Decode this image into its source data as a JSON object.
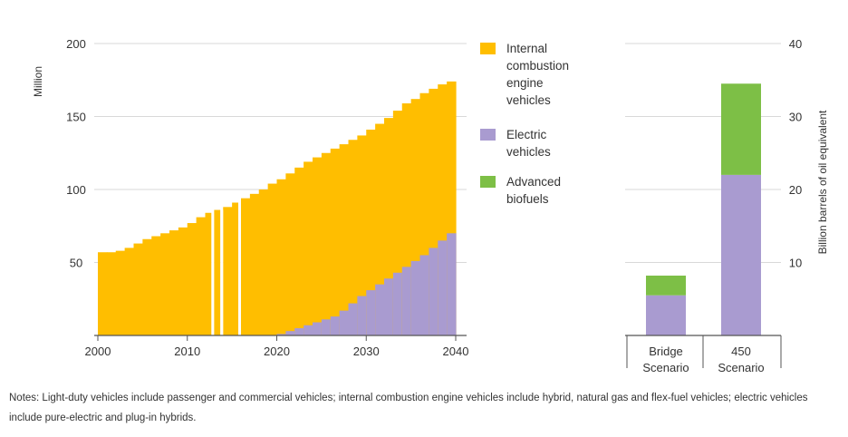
{
  "chart_data": [
    {
      "type": "area",
      "ylabel": "Million",
      "xlim": [
        2000,
        2040
      ],
      "ylim": [
        0,
        200
      ],
      "x_ticks": [
        "2000",
        "2010",
        "2020",
        "2030",
        "2040"
      ],
      "y_ticks": [
        "50",
        "100",
        "150",
        "200"
      ],
      "stacked": true,
      "grid": "horizontal",
      "x": [
        2000,
        2001,
        2002,
        2003,
        2004,
        2005,
        2006,
        2007,
        2008,
        2009,
        2010,
        2011,
        2012,
        2013,
        2014,
        2015,
        2016,
        2017,
        2018,
        2019,
        2020,
        2021,
        2022,
        2023,
        2024,
        2025,
        2026,
        2027,
        2028,
        2029,
        2030,
        2031,
        2032,
        2033,
        2034,
        2035,
        2036,
        2037,
        2038,
        2039,
        2040
      ],
      "series": [
        {
          "name": "Electric vehicles",
          "color": "#a99bd0",
          "values": [
            0,
            0,
            0,
            0,
            0,
            0,
            0,
            0,
            0,
            0,
            0,
            0,
            0,
            0,
            0,
            0,
            0,
            0,
            0,
            0,
            1,
            3,
            5,
            7,
            9,
            11,
            13,
            17,
            22,
            27,
            31,
            35,
            39,
            43,
            47,
            51,
            55,
            60,
            65,
            70,
            75
          ]
        },
        {
          "name": "Internal combustion engine vehicles",
          "color": "#ffbe00",
          "values": [
            57,
            57,
            58,
            60,
            63,
            66,
            68,
            70,
            72,
            74,
            77,
            81,
            84,
            86,
            88,
            91,
            94,
            97,
            100,
            104,
            106,
            108,
            110,
            112,
            113,
            114,
            115,
            114,
            112,
            110,
            110,
            110,
            110,
            111,
            112,
            111,
            111,
            109,
            107,
            104,
            107
          ]
        }
      ],
      "gaps": [
        2012,
        2013,
        2015
      ],
      "legend_position": "right"
    },
    {
      "type": "bar",
      "stacked": true,
      "ylabel": "Billion barrels of oil equivalent",
      "ylim": [
        0,
        40
      ],
      "y_ticks": [
        "10",
        "20",
        "30",
        "40"
      ],
      "categories": [
        "Bridge\nScenario",
        "450\nScenario"
      ],
      "category_lines": [
        [
          "Bridge",
          "Scenario"
        ],
        [
          "450",
          "Scenario"
        ]
      ],
      "series": [
        {
          "name": "Electric vehicles",
          "color": "#a99bd0",
          "values": [
            5.5,
            22
          ]
        },
        {
          "name": "Advanced biofuels",
          "color": "#7dbf46",
          "values": [
            2.7,
            12.5
          ]
        }
      ]
    }
  ],
  "legend": [
    {
      "lines": [
        "Internal",
        "combustion",
        "engine",
        "vehicles"
      ],
      "color": "#ffbe00"
    },
    {
      "lines": [
        "Electric",
        "vehicles"
      ],
      "color": "#a99bd0"
    },
    {
      "lines": [
        "Advanced",
        "biofuels"
      ],
      "color": "#7dbf46"
    }
  ],
  "notes": "Notes: Light-duty vehicles include passenger and commercial vehicles; internal combustion engine vehicles include hybrid, natural gas and flex-fuel vehicles; electric vehicles include pure-electric and plug-in hybrids."
}
